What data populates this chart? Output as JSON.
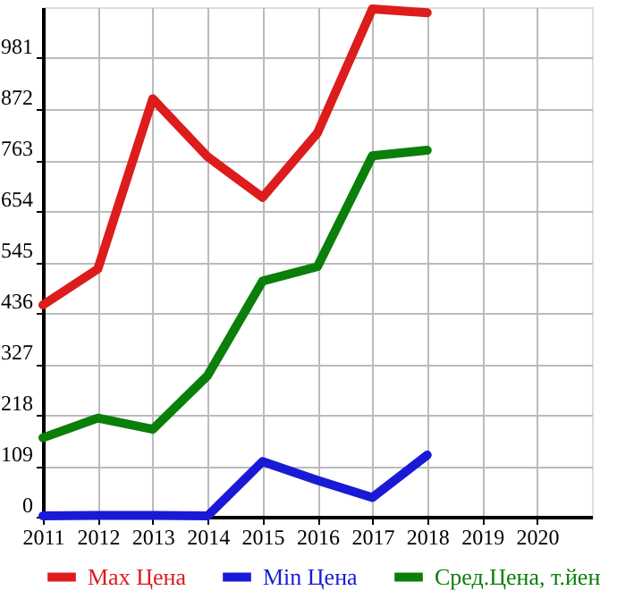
{
  "chart_data": {
    "type": "line",
    "x": [
      2011,
      2012,
      2013,
      2014,
      2015,
      2016,
      2017,
      2018
    ],
    "series": [
      {
        "name": "Max Цена",
        "color": "#dd1c1c",
        "values": [
          453,
          530,
          894,
          770,
          683,
          821,
          1086,
          1078
        ]
      },
      {
        "name": "Min Цена",
        "color": "#1a1ad6",
        "values": [
          2,
          3,
          3,
          2,
          118,
          78,
          41,
          132
        ]
      },
      {
        "name": "Сред.Цена, т.йен",
        "color": "#0a7f0a",
        "values": [
          169,
          211,
          187,
          302,
          504,
          535,
          772,
          784
        ]
      }
    ],
    "xlim": [
      2011,
      2021
    ],
    "xticks": [
      2011,
      2012,
      2013,
      2014,
      2015,
      2016,
      2017,
      2018,
      2019,
      2020
    ],
    "ylim": [
      0,
      1090
    ],
    "yticks": [
      0,
      109,
      218,
      327,
      436,
      545,
      654,
      763,
      872,
      981
    ],
    "grid": true,
    "legend": "bottom",
    "marker": "none",
    "line_style": "solid"
  }
}
